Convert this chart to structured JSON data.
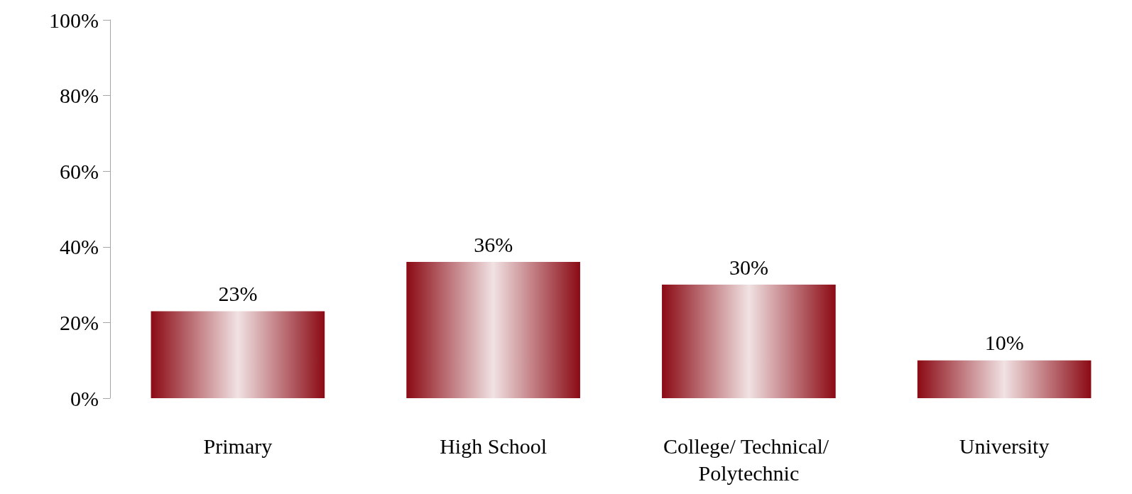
{
  "chart_data": {
    "type": "bar",
    "categories": [
      "Primary",
      "High School",
      "College/ Technical/ Polytechnic",
      "University"
    ],
    "values": [
      23,
      36,
      30,
      10
    ],
    "value_labels": [
      "23%",
      "36%",
      "30%",
      "10%"
    ],
    "color": "#8b0a14",
    "ylim": [
      0,
      100
    ],
    "yticks": [
      {
        "value": 0,
        "label": "0%"
      },
      {
        "value": 20,
        "label": "20%"
      },
      {
        "value": 40,
        "label": "40%"
      },
      {
        "value": 60,
        "label": "60%"
      },
      {
        "value": 80,
        "label": "80%"
      },
      {
        "value": 100,
        "label": "100%"
      }
    ]
  }
}
